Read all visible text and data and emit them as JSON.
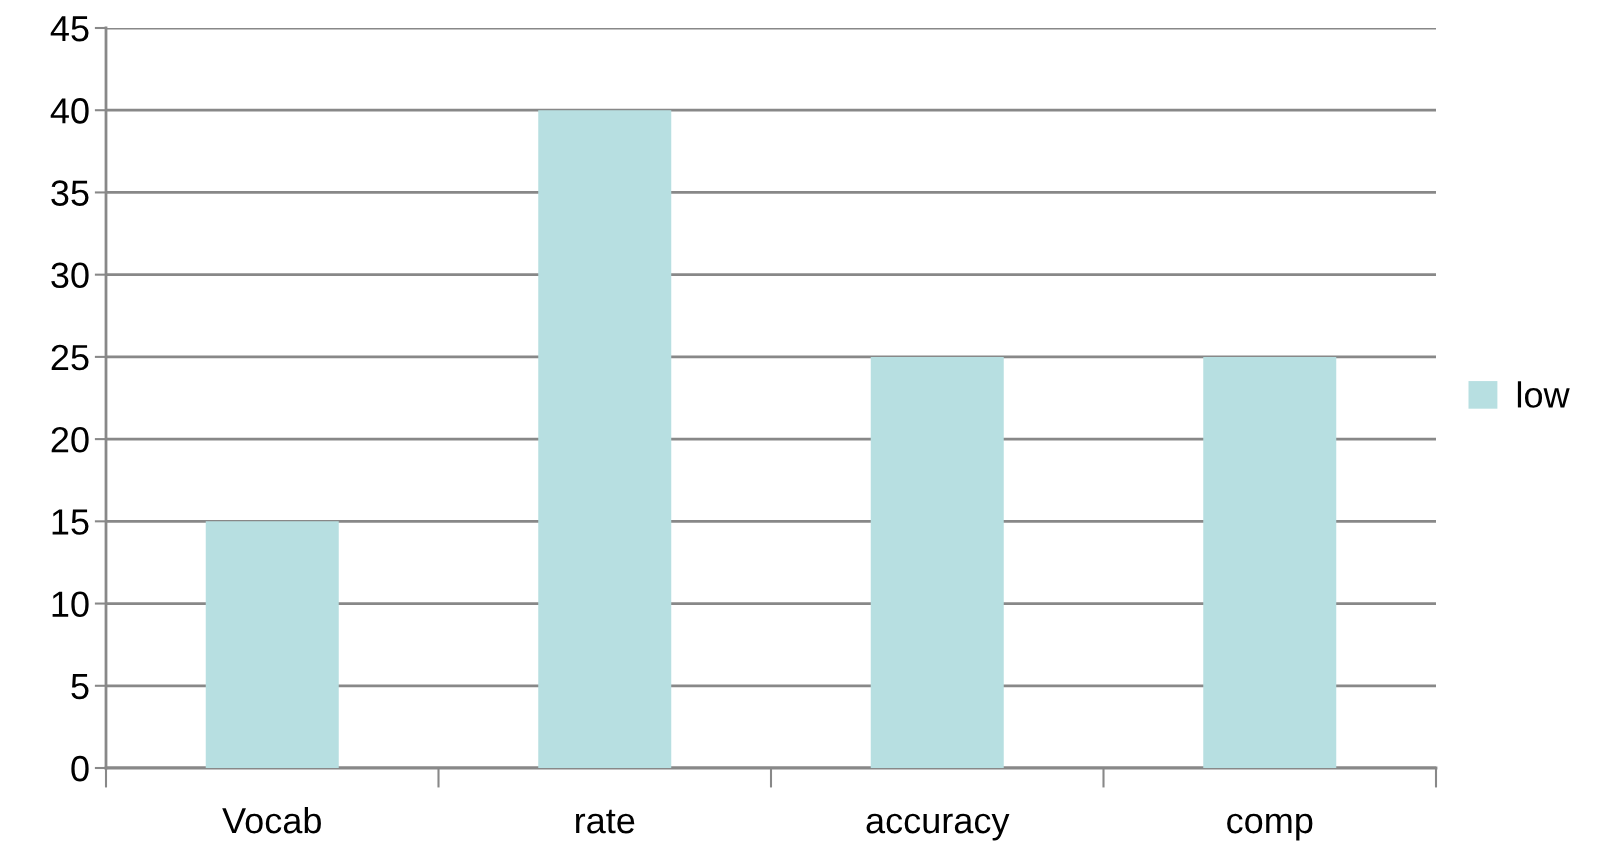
{
  "chart_data": {
    "type": "bar",
    "categories": [
      "Vocab",
      "rate",
      "accuracy",
      "comp"
    ],
    "series": [
      {
        "name": "low",
        "color": "#b7dfe1",
        "values": [
          15,
          40,
          25,
          25
        ]
      }
    ],
    "ylim": [
      0,
      45
    ],
    "yticks": [
      0,
      5,
      10,
      15,
      20,
      25,
      30,
      35,
      40,
      45
    ],
    "grid": "y",
    "legend": "right"
  }
}
